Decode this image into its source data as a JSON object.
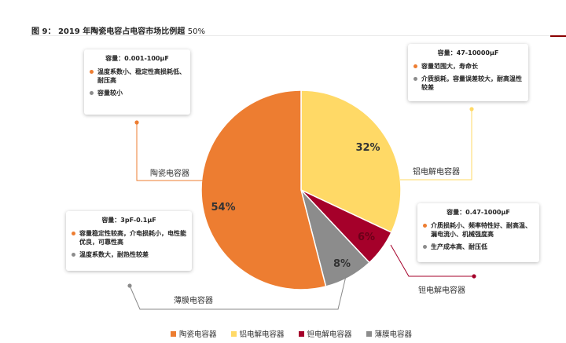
{
  "figure": {
    "title_prefix": "图 9：",
    "title_main": "2019 年陶瓷电容占电容市场比例超",
    "title_suffix": "50%"
  },
  "colors": {
    "ceramic": "#ED7D31",
    "aluminum": "#FFD966",
    "tantalum": "#A5002A",
    "film": "#8C8C8C",
    "leader": "#888888"
  },
  "chart_data": {
    "type": "pie",
    "title": "2019 年陶瓷电容占电容市场比例超 50%",
    "categories": [
      "陶瓷电容器",
      "铝电解电容器",
      "钽电解电容器",
      "薄膜电容器"
    ],
    "values": [
      54,
      32,
      6,
      8
    ],
    "labels": [
      "54%",
      "32%",
      "6%",
      "8%"
    ],
    "start_angle_deg": 0,
    "direction": "clockwise",
    "order_clockwise": [
      "aluminum",
      "tantalum",
      "film",
      "ceramic"
    ],
    "legend_position": "bottom"
  },
  "callouts": {
    "ceramic": {
      "name": "陶瓷电容器",
      "header": "容量：0.001-100μF",
      "items": [
        {
          "text": "温度系数小、稳定性高损耗低、耐压高",
          "color": "#ED7D31"
        },
        {
          "text": "容量较小",
          "color": "#8C8C8C"
        }
      ]
    },
    "aluminum": {
      "name": "铝电解电容器",
      "header": "容量：47-10000μF",
      "items": [
        {
          "text": "容量范围大，寿命长",
          "color": "#ED7D31"
        },
        {
          "text": "介质损耗，容量误差较大，耐高温性较差",
          "color": "#8C8C8C"
        }
      ]
    },
    "tantalum": {
      "name": "钽电解电容器",
      "header": "容量：0.47-1000μF",
      "items": [
        {
          "text": "介质损耗小、频率特性好、耐高温、漏电流小、机械强度高",
          "color": "#ED7D31"
        },
        {
          "text": "生产成本高、耐压低",
          "color": "#8C8C8C"
        }
      ]
    },
    "film": {
      "name": "薄膜电容器",
      "header": "容量：3pF-0.1μF",
      "items": [
        {
          "text": "容量稳定性较高，介电损耗小，电性能优良，可靠性高",
          "color": "#ED7D31"
        },
        {
          "text": "温度系数大，耐热性较差",
          "color": "#8C8C8C"
        }
      ]
    }
  },
  "legend": [
    {
      "label": "陶瓷电容器",
      "color": "#ED7D31"
    },
    {
      "label": "铝电解电容器",
      "color": "#FFD966"
    },
    {
      "label": "钽电解电容器",
      "color": "#A5002A"
    },
    {
      "label": "薄膜电容器",
      "color": "#8C8C8C"
    }
  ]
}
